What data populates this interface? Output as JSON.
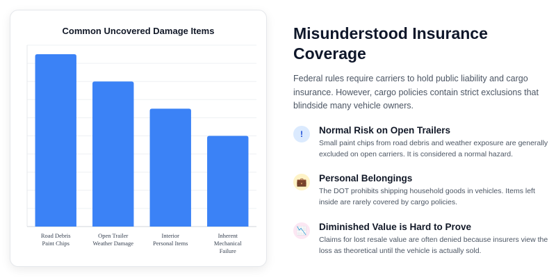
{
  "chart_data": {
    "type": "bar",
    "title": "Common Uncovered Damage Items",
    "categories": [
      [
        "Road Debris",
        "Paint Chips"
      ],
      [
        "Open Trailer",
        "Weather Damage"
      ],
      [
        "Interior",
        "Personal Items"
      ],
      [
        "Inherent",
        "Mechanical",
        "Failure"
      ]
    ],
    "values": [
      95,
      80,
      65,
      50
    ],
    "ylim": [
      0,
      100
    ],
    "grid": true,
    "color": "#3b82f6"
  },
  "content": {
    "heading": "Misunderstood Insurance Coverage",
    "intro": "Federal rules require carriers to hold public liability and cargo insurance. However, cargo policies contain strict exclusions that blindside many vehicle owners.",
    "features": [
      {
        "icon": "info-icon",
        "glyph": "!",
        "title": "Normal Risk on Open Trailers",
        "desc": "Small paint chips from road debris and weather exposure are generally excluded on open carriers. It is considered a normal hazard."
      },
      {
        "icon": "briefcase-icon",
        "glyph": "💼",
        "title": "Personal Belongings",
        "desc": "The DOT prohibits shipping household goods in vehicles. Items left inside are rarely covered by cargo policies."
      },
      {
        "icon": "chart-decline-icon",
        "glyph": "📉",
        "title": "Diminished Value is Hard to Prove",
        "desc": "Claims for lost resale value are often denied because insurers view the loss as theoretical until the vehicle is actually sold."
      }
    ]
  }
}
